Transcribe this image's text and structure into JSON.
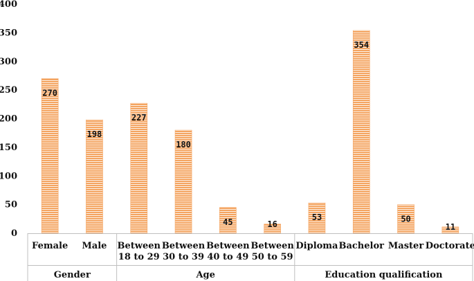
{
  "chart_data": {
    "type": "bar",
    "ylim": [
      0,
      400
    ],
    "yticks": [
      0,
      50,
      100,
      150,
      200,
      250,
      300,
      350,
      400
    ],
    "bar_color": "#F4A460",
    "stripe_color": "#ffffff",
    "groups": [
      {
        "name": "Gender",
        "categories": [
          [
            "Female"
          ],
          [
            "Male"
          ]
        ]
      },
      {
        "name": "Age",
        "categories": [
          [
            "Between",
            "18 to 29"
          ],
          [
            "Between",
            "30 to 39"
          ],
          [
            "Between",
            "40 to 49"
          ],
          [
            "Between",
            "50 to 59"
          ]
        ]
      },
      {
        "name": "Education qualification",
        "categories": [
          [
            "Diploma"
          ],
          [
            "Bachelor"
          ],
          [
            "Master"
          ],
          [
            "Doctorate"
          ]
        ]
      }
    ],
    "values": [
      270,
      198,
      227,
      180,
      45,
      16,
      53,
      354,
      50,
      11
    ]
  }
}
